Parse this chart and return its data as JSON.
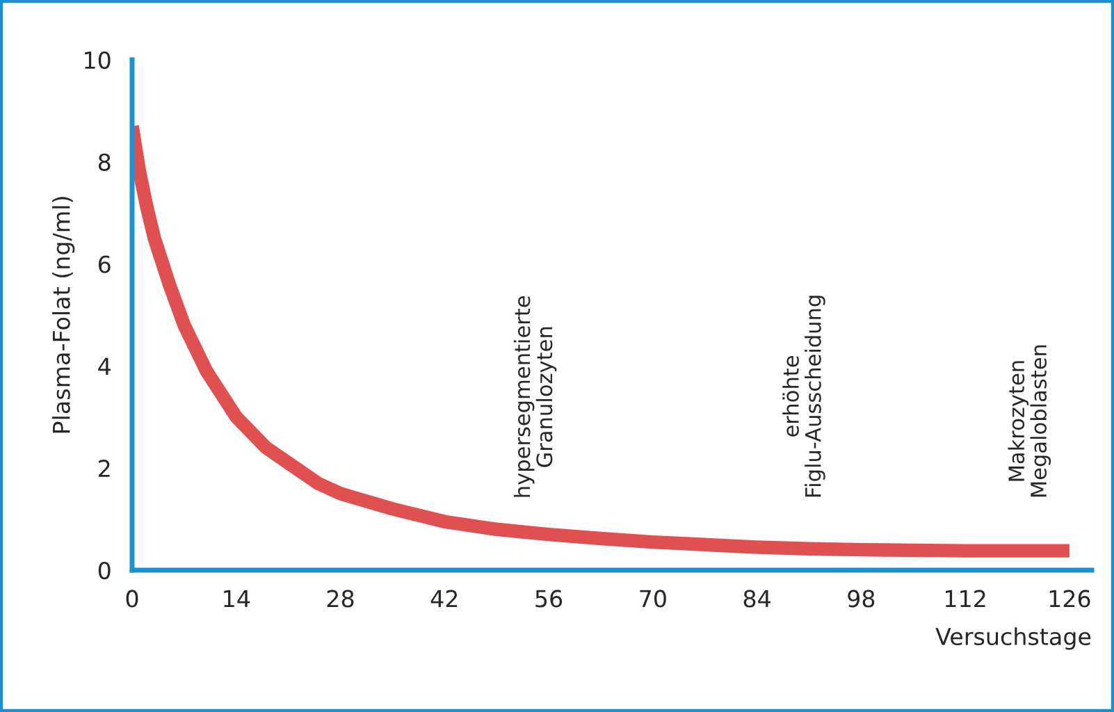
{
  "chart_data": {
    "type": "line",
    "ylabel": "Plasma-Folat (ng/ml)",
    "xlabel": "Versuchstage",
    "series": [
      {
        "color": "#e05050",
        "x": [
          0,
          1,
          2,
          3,
          5,
          7,
          10,
          14,
          18,
          21,
          25,
          28,
          35,
          42,
          49,
          56,
          63,
          70,
          77,
          84,
          91,
          98,
          105,
          112,
          119,
          126
        ],
        "values": [
          8.7,
          7.8,
          7.1,
          6.5,
          5.6,
          4.8,
          3.9,
          3.0,
          2.4,
          2.1,
          1.7,
          1.5,
          1.2,
          0.95,
          0.8,
          0.7,
          0.62,
          0.55,
          0.5,
          0.45,
          0.42,
          0.4,
          0.39,
          0.38,
          0.38,
          0.38
        ]
      }
    ],
    "xlim": [
      0,
      129
    ],
    "ylim": [
      0,
      10
    ],
    "xticks": [
      0,
      14,
      28,
      42,
      56,
      70,
      84,
      98,
      112,
      126
    ],
    "yticks": [
      0,
      2,
      4,
      6,
      8,
      10
    ],
    "grid": false,
    "marker": "none",
    "line_style": "solid",
    "annotations": [
      "hypersegmentierte\nGranulozyten",
      "erhöhte\nFiglu-Ausscheidung",
      "Makrozyten\nMegaloblasten"
    ]
  }
}
